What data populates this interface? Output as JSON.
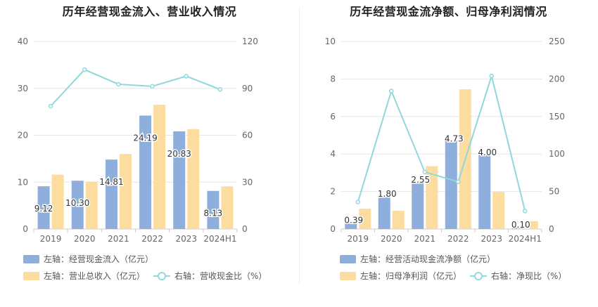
{
  "colors": {
    "blue": "#8eaedb",
    "orange": "#fddca0",
    "teal": "#8fd8dc",
    "grid": "#e6e6e6",
    "axis_text": "#666666",
    "label_text": "#333333"
  },
  "chart_data": [
    {
      "type": "bar",
      "title": "历年经营现金流入、营业收入情况",
      "categories": [
        "2019",
        "2020",
        "2021",
        "2022",
        "2023",
        "2024H1"
      ],
      "left_axis": {
        "min": 0,
        "max": 40,
        "ticks": [
          "0",
          "10",
          "20",
          "30",
          "40"
        ]
      },
      "right_axis": {
        "min": 0,
        "max": 120,
        "ticks": [
          "0",
          "30",
          "60",
          "90",
          "120"
        ]
      },
      "series": [
        {
          "name": "左轴：经营现金流入（亿元）",
          "type": "bar",
          "axis": "left",
          "color": "#8eaedb",
          "values": [
            9.12,
            10.3,
            14.81,
            24.19,
            20.83,
            8.13
          ],
          "labels": [
            "9.12",
            "10.30",
            "14.81",
            "24.19",
            "20.83",
            "8.13"
          ]
        },
        {
          "name": "左轴：营业总收入（亿元）",
          "type": "bar",
          "axis": "left",
          "color": "#fddca0",
          "values": [
            11.6,
            10.1,
            16.0,
            26.5,
            21.3,
            9.1
          ]
        },
        {
          "name": "右轴：营收现金比（%）",
          "type": "line",
          "axis": "right",
          "color": "#8fd8dc",
          "values": [
            78.6,
            102.0,
            92.6,
            91.3,
            97.8,
            89.3
          ]
        }
      ]
    },
    {
      "type": "bar",
      "title": "历年经营现金流净额、归母净利润情况",
      "categories": [
        "2019",
        "2020",
        "2021",
        "2022",
        "2023",
        "2024H1"
      ],
      "left_axis": {
        "min": 0,
        "max": 10,
        "ticks": [
          "0",
          "2",
          "4",
          "6",
          "8",
          "10"
        ]
      },
      "right_axis": {
        "min": 0,
        "max": 250,
        "ticks": [
          "0",
          "50",
          "100",
          "150",
          "200",
          "250"
        ]
      },
      "series": [
        {
          "name": "左轴：经营活动现金流净额（亿元）",
          "type": "bar",
          "axis": "left",
          "color": "#8eaedb",
          "values": [
            0.39,
            1.8,
            2.55,
            4.73,
            4.0,
            0.1
          ],
          "labels": [
            "0.39",
            "1.80",
            "2.55",
            "4.73",
            "4.00",
            "0.10"
          ]
        },
        {
          "name": "左轴：归母净利润（亿元）",
          "type": "bar",
          "axis": "left",
          "color": "#fddca0",
          "values": [
            1.08,
            0.97,
            3.35,
            7.45,
            1.98,
            0.42
          ]
        },
        {
          "name": "右轴：净现比（%）",
          "type": "line",
          "axis": "right",
          "color": "#8fd8dc",
          "values": [
            36,
            184,
            76,
            63,
            204,
            24
          ]
        }
      ]
    }
  ]
}
